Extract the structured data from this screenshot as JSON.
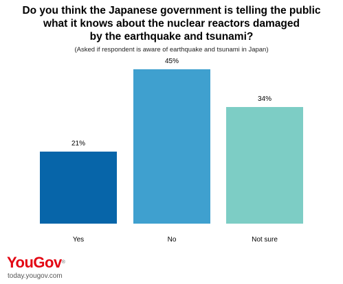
{
  "title_line1": "Do you think the Japanese government is telling the public",
  "title_line2": "what it knows about the nuclear reactors damaged",
  "title_line3": "by the earthquake and tsunami?",
  "subtitle": "(Asked if respondent is aware of earthquake and tsunami in Japan)",
  "brand": {
    "you": "You",
    "gov": "Gov",
    "mark": "®",
    "url": "today.yougov.com"
  },
  "chart_data": {
    "type": "bar",
    "title": "Do you think the Japanese government is telling the public what it knows about the nuclear reactors damaged by the earthquake and tsunami?",
    "subtitle": "(Asked if respondent is aware of earthquake and tsunami in Japan)",
    "categories": [
      "Yes",
      "No",
      "Not sure"
    ],
    "values": [
      21,
      45,
      34
    ],
    "value_labels": [
      "21%",
      "45%",
      "34%"
    ],
    "colors": [
      "#0765A9",
      "#3FA0CF",
      "#7DCDC5"
    ],
    "xlabel": "",
    "ylabel": "",
    "ylim": [
      0,
      45
    ],
    "grid": false,
    "legend": "none"
  }
}
